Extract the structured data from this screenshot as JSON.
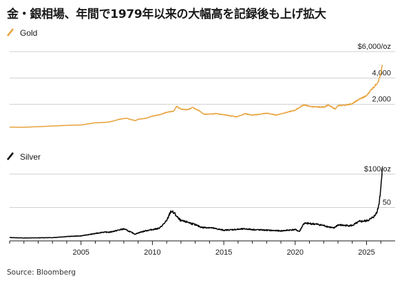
{
  "title": "金・銀相場、年間で1979年以来の大幅高を記録後も上げ拡大",
  "source": "Source: Bloomberg",
  "colors": {
    "gold": "#e8a33d",
    "silver": "#000000",
    "grid": "#cfcfcf"
  },
  "chart_data": [
    {
      "type": "line",
      "series": [
        {
          "name": "Gold"
        }
      ],
      "ylim": [
        0,
        6000
      ],
      "yticks": [
        {
          "value": 2000,
          "label": "2,000"
        },
        {
          "value": 4000,
          "label": "4,000"
        },
        {
          "value": 6000,
          "label": "$6,000/oz"
        }
      ],
      "x": [
        2000.0,
        2001.0,
        2002.0,
        2003.0,
        2004.0,
        2005.0,
        2006.0,
        2006.5,
        2007.0,
        2007.8,
        2008.2,
        2008.8,
        2009.0,
        2009.5,
        2010.0,
        2010.5,
        2011.0,
        2011.5,
        2011.7,
        2012.0,
        2012.5,
        2012.8,
        2013.3,
        2013.6,
        2014.0,
        2014.5,
        2015.0,
        2015.9,
        2016.5,
        2017.0,
        2017.5,
        2018.0,
        2018.7,
        2019.0,
        2019.5,
        2020.0,
        2020.6,
        2021.0,
        2021.5,
        2022.0,
        2022.3,
        2022.8,
        2023.0,
        2023.5,
        2024.0,
        2024.5,
        2025.0,
        2025.3,
        2025.5,
        2025.8,
        2026.0,
        2026.1
      ],
      "y": [
        280,
        265,
        310,
        360,
        410,
        440,
        610,
        620,
        670,
        900,
        950,
        760,
        880,
        940,
        1110,
        1220,
        1390,
        1500,
        1850,
        1650,
        1600,
        1770,
        1500,
        1250,
        1280,
        1300,
        1210,
        1060,
        1300,
        1180,
        1250,
        1330,
        1190,
        1290,
        1420,
        1560,
        1970,
        1850,
        1800,
        1800,
        1950,
        1650,
        1900,
        1950,
        2050,
        2400,
        2650,
        3100,
        3300,
        3700,
        4300,
        5000
      ]
    },
    {
      "type": "line",
      "series": [
        {
          "name": "Silver"
        }
      ],
      "ylim": [
        0,
        100
      ],
      "yticks": [
        {
          "value": 50,
          "label": "50"
        },
        {
          "value": 100,
          "label": "$100/oz"
        }
      ],
      "xticks": [
        2005,
        2010,
        2015,
        2020,
        2025
      ],
      "x": [
        2000.0,
        2001.0,
        2002.0,
        2003.0,
        2004.0,
        2005.0,
        2006.0,
        2006.5,
        2007.0,
        2008.0,
        2008.2,
        2008.8,
        2009.0,
        2009.5,
        2010.0,
        2010.5,
        2011.0,
        2011.3,
        2011.6,
        2011.8,
        2012.0,
        2012.5,
        2013.0,
        2013.5,
        2014.0,
        2015.0,
        2016.5,
        2017.0,
        2018.0,
        2019.0,
        2020.0,
        2020.3,
        2020.6,
        2021.0,
        2021.5,
        2022.0,
        2022.7,
        2023.0,
        2023.5,
        2024.0,
        2024.5,
        2025.0,
        2025.3,
        2025.6,
        2025.8,
        2025.9,
        2026.0,
        2026.1
      ],
      "y": [
        5,
        4.4,
        4.6,
        4.9,
        6.5,
        7.5,
        11,
        13,
        13,
        18,
        16,
        10,
        12,
        15,
        17,
        19,
        30,
        45,
        40,
        34,
        30,
        28,
        24,
        20,
        20,
        16,
        18,
        17,
        16,
        15,
        17,
        14,
        26,
        26,
        25,
        23,
        19,
        24,
        23,
        23,
        29,
        30,
        33,
        38,
        48,
        60,
        80,
        110
      ]
    }
  ]
}
